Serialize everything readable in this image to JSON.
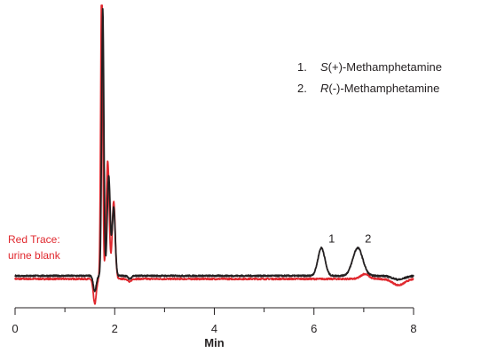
{
  "chart_data": {
    "type": "line",
    "xlabel": "Min",
    "ylabel": "",
    "xlim": [
      0,
      8
    ],
    "ylim": [
      -0.2,
      5.0
    ],
    "x_ticks": [
      0,
      2,
      4,
      6,
      8
    ],
    "x_minor_ticks": [
      1,
      3,
      5,
      7
    ],
    "grid": false,
    "legend": {
      "position": "top-right",
      "entries": [
        {
          "num": "1.",
          "name_italic": "S",
          "name_rest": "(+)-Methamphetamine"
        },
        {
          "num": "2.",
          "name_italic": "R",
          "name_rest": "(-)-Methamphetamine"
        }
      ]
    },
    "annotation": {
      "lines": [
        "Red Trace:",
        "urine blank"
      ],
      "color": "#e0282e"
    },
    "peak_labels": [
      {
        "label": "1",
        "x": 6.15
      },
      {
        "label": "2",
        "x": 6.88
      }
    ],
    "series": [
      {
        "color": "#231f20",
        "baseline": 0.0,
        "noise_amp": 0.012,
        "dip": {
          "x": 1.6,
          "depth": 0.25
        },
        "peaks": [
          {
            "x": 1.76,
            "height": 4.3,
            "width": 0.022
          },
          {
            "x": 1.88,
            "height": 1.6,
            "width": 0.03
          },
          {
            "x": 1.98,
            "height": 1.1,
            "width": 0.03
          },
          {
            "x": 6.15,
            "height": 0.45,
            "width": 0.07
          },
          {
            "x": 6.88,
            "height": 0.45,
            "width": 0.1
          }
        ],
        "drift": [
          {
            "x": 7.7,
            "depth": 0.06
          }
        ]
      },
      {
        "color": "#e0282e",
        "baseline": -0.05,
        "noise_amp": 0.012,
        "dip": {
          "x": 1.6,
          "depth": 0.4
        },
        "peaks": [
          {
            "x": 1.74,
            "height": 5.0,
            "width": 0.02
          },
          {
            "x": 1.86,
            "height": 1.9,
            "width": 0.03
          },
          {
            "x": 1.98,
            "height": 1.25,
            "width": 0.03
          },
          {
            "x": 7.02,
            "height": 0.08,
            "width": 0.08
          }
        ],
        "drift": [
          {
            "x": 7.7,
            "depth": 0.1
          }
        ]
      }
    ]
  }
}
